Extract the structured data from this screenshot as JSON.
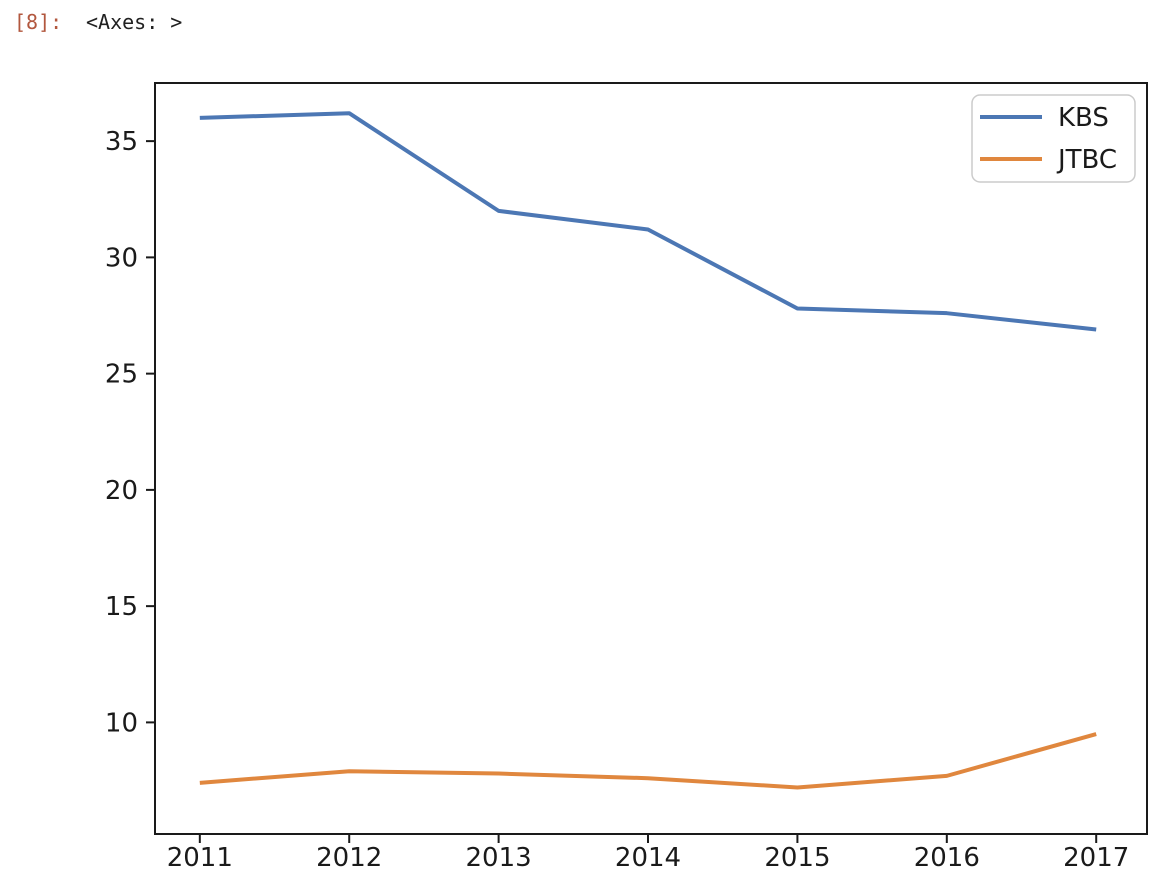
{
  "output_prompt": {
    "label": "[8]:",
    "color": "#b2573e"
  },
  "output_text": "<Axes: >",
  "chart_data": {
    "type": "line",
    "x": [
      2011,
      2012,
      2013,
      2014,
      2015,
      2016,
      2017
    ],
    "series": [
      {
        "name": "KBS",
        "color": "#4c77b4",
        "values": [
          36.0,
          36.2,
          32.0,
          31.2,
          27.8,
          27.6,
          26.9
        ]
      },
      {
        "name": "JTBC",
        "color": "#e0873e",
        "values": [
          7.4,
          7.9,
          7.8,
          7.6,
          7.2,
          7.7,
          9.5
        ]
      }
    ],
    "title": "",
    "xlabel": "",
    "ylabel": "",
    "xticks": [
      2011,
      2012,
      2013,
      2014,
      2015,
      2016,
      2017
    ],
    "yticks": [
      10,
      15,
      20,
      25,
      30,
      35
    ],
    "xlim": [
      2010.7,
      2017.34
    ],
    "ylim": [
      5.2,
      37.5
    ],
    "grid": false,
    "legend_position": "upper right",
    "axis_color": "#1a1a1a",
    "legend_border_color": "#cbcbcb"
  }
}
